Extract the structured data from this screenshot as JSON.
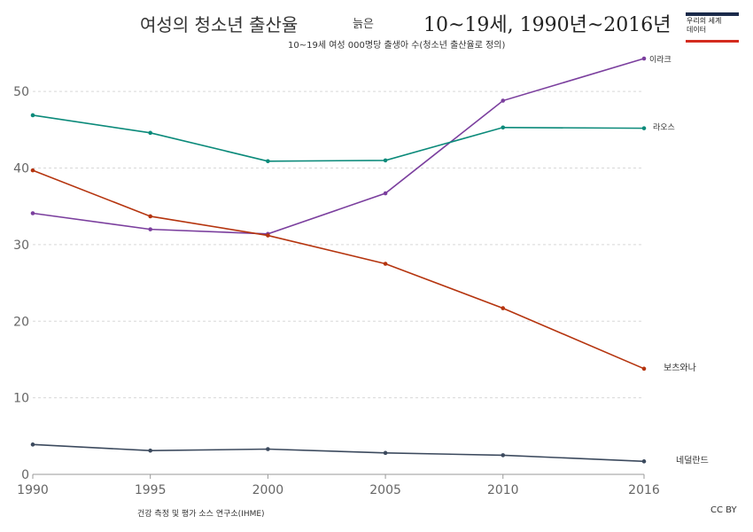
{
  "header": {
    "title": "여성의 청소년 출산율",
    "title_mid": "늙은",
    "title_range": "10~19세, 1990년~2016년",
    "subtitle": "10~19세 여성 000명당 출생아 수(청소년 출산율로 정의)"
  },
  "logo": {
    "line1": "우리의 세계",
    "line2": "데이터",
    "top_color": "#1a2a4a",
    "bottom_color": "#d42b1e"
  },
  "footer": {
    "source": "건강 측정 및 평가 소스 연구소(IHME)",
    "license": "CC BY"
  },
  "chart_data": {
    "type": "line",
    "x": [
      1990,
      1995,
      2000,
      2005,
      2010,
      2016
    ],
    "xlim": [
      1990,
      2016
    ],
    "ylim": [
      0,
      55
    ],
    "yticks": [
      0,
      10,
      20,
      30,
      40,
      50
    ],
    "xticks": [
      1990,
      1995,
      2000,
      2005,
      2010,
      2016
    ],
    "grid": true,
    "series": [
      {
        "name": "이라크",
        "color": "#7b3f9e",
        "values": [
          34.1,
          32.0,
          31.4,
          36.7,
          48.8,
          54.3
        ]
      },
      {
        "name": "라오스",
        "color": "#0b8a7a",
        "values": [
          46.9,
          44.6,
          40.9,
          41.0,
          45.3,
          45.2
        ]
      },
      {
        "name": "보츠와나",
        "color": "#b5340e",
        "values": [
          39.7,
          33.7,
          31.2,
          27.5,
          21.7,
          13.8
        ]
      },
      {
        "name": "네덜란드",
        "color": "#3c4a5e",
        "values": [
          3.9,
          3.1,
          3.3,
          2.8,
          2.5,
          1.7
        ]
      }
    ]
  }
}
